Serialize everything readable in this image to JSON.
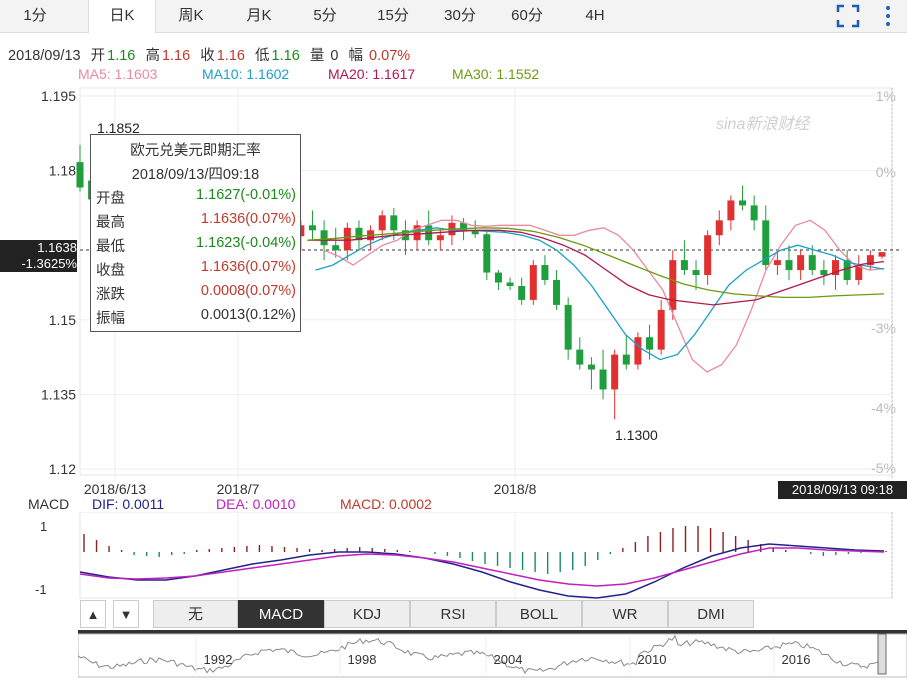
{
  "tabs": [
    {
      "label": "1分",
      "active": false
    },
    {
      "label": "日K",
      "active": true
    },
    {
      "label": "周K",
      "active": false
    },
    {
      "label": "月K",
      "active": false
    },
    {
      "label": "5分",
      "active": false
    },
    {
      "label": "15分",
      "active": false
    },
    {
      "label": "30分",
      "active": false
    },
    {
      "label": "60分",
      "active": false
    },
    {
      "label": "4H",
      "active": false
    }
  ],
  "info": {
    "date": "2018/09/13",
    "open_label": "开",
    "open": "1.16",
    "high_label": "高",
    "high": "1.16",
    "close_label": "收",
    "close": "1.16",
    "low_label": "低",
    "low": "1.16",
    "vol_label": "量",
    "vol": "0",
    "amp_label": "幅",
    "amp": "0.07%"
  },
  "ma": {
    "ma5": "MA5: 1.1603",
    "ma10": "MA10: 1.1602",
    "ma20": "MA20: 1.1617",
    "ma30": "MA30: 1.1552"
  },
  "tooltip": {
    "name": "欧元兑美元即期汇率",
    "datetime": "2018/09/13/四09:18",
    "rows": [
      {
        "label": "开盘",
        "value": "1.1627(-0.01%)",
        "color": "#1a8a1a"
      },
      {
        "label": "最高",
        "value": "1.1636(0.07%)",
        "color": "#c0392b"
      },
      {
        "label": "最低",
        "value": "1.1623(-0.04%)",
        "color": "#1a8a1a"
      },
      {
        "label": "收盘",
        "value": "1.1636(0.07%)",
        "color": "#c0392b"
      },
      {
        "label": "涨跌",
        "value": "0.0008(0.07%)",
        "color": "#c0392b"
      },
      {
        "label": "振幅",
        "value": "0.0013(0.12%)",
        "color": "#333"
      }
    ]
  },
  "current": {
    "price": "1.1638",
    "change": "-1.3625%"
  },
  "max_label": "1.1852",
  "min_label": "1.1300",
  "date_badge": "2018/09/13 09:18",
  "watermark": "sina新浪财经",
  "macd_legend": {
    "title": "MACD",
    "dif": "DIF: 0.0011",
    "dea": "DEA: 0.0010",
    "macd": "MACD: 0.0002"
  },
  "macd_ticks": [
    "1",
    "-1"
  ],
  "indicator_tabs": [
    {
      "label": "无",
      "sel": false
    },
    {
      "label": "MACD",
      "sel": true
    },
    {
      "label": "KDJ",
      "sel": false
    },
    {
      "label": "RSI",
      "sel": false
    },
    {
      "label": "BOLL",
      "sel": false
    },
    {
      "label": "WR",
      "sel": false
    },
    {
      "label": "DMI",
      "sel": false
    }
  ],
  "arrows": {
    "up": "▲",
    "down": "▼"
  },
  "overview_years": [
    "1992",
    "1998",
    "2004",
    "2010",
    "2016"
  ],
  "colors": {
    "up": "#e03030",
    "down": "#1e9e3c",
    "ma5": "#e88aa0",
    "ma10": "#1aa0c8",
    "ma20": "#b01850",
    "ma30": "#6e9a10",
    "dif": "#222288",
    "dea": "#c020c0"
  },
  "chart_data": {
    "type": "candlestick",
    "title": "欧元兑美元即期汇率",
    "y_ticks": [
      "1.195",
      "1.18",
      "1.15",
      "1.135",
      "1.12"
    ],
    "pct_ticks": [
      "1%",
      "0%",
      "-3%",
      "-4%",
      "-5%"
    ],
    "x_ticks": [
      "2018/6/13",
      "2018/7",
      "2018/8"
    ],
    "ylim": [
      1.12,
      1.195
    ],
    "candles": [
      [
        1.1817,
        1.1852,
        1.1758,
        1.1766
      ],
      [
        1.178,
        1.1795,
        1.1727,
        1.1742
      ],
      [
        1.1742,
        1.175,
        1.17,
        1.1712
      ],
      [
        1.1712,
        1.1722,
        1.16,
        1.1615
      ],
      [
        1.1615,
        1.164,
        1.159,
        1.162
      ],
      [
        1.162,
        1.164,
        1.1575,
        1.1626
      ],
      [
        1.1626,
        1.166,
        1.16,
        1.164
      ],
      [
        1.164,
        1.167,
        1.162,
        1.1655
      ],
      [
        1.1655,
        1.169,
        1.164,
        1.1665
      ],
      [
        1.1665,
        1.169,
        1.163,
        1.165
      ],
      [
        1.165,
        1.168,
        1.162,
        1.166
      ],
      [
        1.166,
        1.17,
        1.164,
        1.167
      ],
      [
        1.167,
        1.172,
        1.165,
        1.1705
      ],
      [
        1.1705,
        1.173,
        1.169,
        1.17
      ],
      [
        1.17,
        1.1765,
        1.168,
        1.174
      ],
      [
        1.174,
        1.177,
        1.171,
        1.172
      ],
      [
        1.172,
        1.1745,
        1.166,
        1.168
      ],
      [
        1.168,
        1.171,
        1.164,
        1.17
      ],
      [
        1.17,
        1.172,
        1.166,
        1.1668
      ],
      [
        1.1668,
        1.17,
        1.164,
        1.169
      ],
      [
        1.169,
        1.172,
        1.166,
        1.168
      ],
      [
        1.168,
        1.17,
        1.162,
        1.165
      ],
      [
        1.165,
        1.1685,
        1.1625,
        1.164
      ],
      [
        1.164,
        1.1695,
        1.162,
        1.1685
      ],
      [
        1.1685,
        1.17,
        1.164,
        1.166
      ],
      [
        1.166,
        1.169,
        1.164,
        1.168
      ],
      [
        1.168,
        1.172,
        1.166,
        1.171
      ],
      [
        1.171,
        1.1725,
        1.166,
        1.168
      ],
      [
        1.168,
        1.17,
        1.163,
        1.166
      ],
      [
        1.166,
        1.17,
        1.164,
        1.169
      ],
      [
        1.169,
        1.172,
        1.165,
        1.166
      ],
      [
        1.166,
        1.168,
        1.164,
        1.167
      ],
      [
        1.167,
        1.171,
        1.165,
        1.1695
      ],
      [
        1.1695,
        1.1705,
        1.166,
        1.168
      ],
      [
        1.168,
        1.17,
        1.1665,
        1.1672
      ],
      [
        1.1672,
        1.168,
        1.158,
        1.1595
      ],
      [
        1.1595,
        1.16,
        1.156,
        1.1575
      ],
      [
        1.1575,
        1.1585,
        1.156,
        1.1568
      ],
      [
        1.1568,
        1.1585,
        1.153,
        1.154
      ],
      [
        1.154,
        1.162,
        1.153,
        1.161
      ],
      [
        1.161,
        1.163,
        1.157,
        1.158
      ],
      [
        1.158,
        1.16,
        1.152,
        1.153
      ],
      [
        1.153,
        1.1545,
        1.142,
        1.144
      ],
      [
        1.144,
        1.1465,
        1.14,
        1.141
      ],
      [
        1.141,
        1.1425,
        1.136,
        1.14
      ],
      [
        1.14,
        1.144,
        1.134,
        1.136
      ],
      [
        1.136,
        1.144,
        1.13,
        1.143
      ],
      [
        1.143,
        1.147,
        1.14,
        1.141
      ],
      [
        1.141,
        1.1475,
        1.14,
        1.1465
      ],
      [
        1.1465,
        1.149,
        1.142,
        1.144
      ],
      [
        1.144,
        1.154,
        1.143,
        1.152
      ],
      [
        1.152,
        1.164,
        1.15,
        1.162
      ],
      [
        1.162,
        1.166,
        1.159,
        1.16
      ],
      [
        1.16,
        1.162,
        1.156,
        1.159
      ],
      [
        1.159,
        1.168,
        1.157,
        1.167
      ],
      [
        1.167,
        1.172,
        1.165,
        1.17
      ],
      [
        1.17,
        1.175,
        1.168,
        1.174
      ],
      [
        1.174,
        1.177,
        1.172,
        1.173
      ],
      [
        1.173,
        1.175,
        1.168,
        1.17
      ],
      [
        1.17,
        1.173,
        1.16,
        1.161
      ],
      [
        1.161,
        1.164,
        1.159,
        1.162
      ],
      [
        1.162,
        1.165,
        1.158,
        1.16
      ],
      [
        1.16,
        1.164,
        1.158,
        1.163
      ],
      [
        1.163,
        1.165,
        1.159,
        1.16
      ],
      [
        1.16,
        1.162,
        1.157,
        1.159
      ],
      [
        1.159,
        1.163,
        1.156,
        1.162
      ],
      [
        1.162,
        1.164,
        1.157,
        1.158
      ],
      [
        1.158,
        1.163,
        1.157,
        1.161
      ],
      [
        1.161,
        1.164,
        1.16,
        1.163
      ],
      [
        1.1627,
        1.1636,
        1.1623,
        1.1636
      ]
    ],
    "ma5": [
      1.164,
      1.1628,
      1.161,
      1.163,
      1.165,
      1.166,
      1.168,
      1.169,
      1.17,
      1.17,
      1.169,
      1.1688,
      1.169,
      1.169,
      1.169,
      1.168,
      1.167,
      1.167,
      1.168,
      1.1685,
      1.167,
      1.164,
      1.16,
      1.156,
      1.149,
      1.142,
      1.1395,
      1.141,
      1.145,
      1.152,
      1.16,
      1.165,
      1.169,
      1.17,
      1.168,
      1.164,
      1.161,
      1.16,
      1.1603
    ],
    "ma10": [
      1.16,
      1.161,
      1.163,
      1.165,
      1.1665,
      1.1675,
      1.168,
      1.1685,
      1.168,
      1.168,
      1.1678,
      1.1676,
      1.167,
      1.166,
      1.164,
      1.161,
      1.157,
      1.152,
      1.147,
      1.144,
      1.142,
      1.143,
      1.147,
      1.152,
      1.157,
      1.16,
      1.162,
      1.164,
      1.165,
      1.164,
      1.163,
      1.1615,
      1.1608,
      1.1602
    ],
    "ma20": [
      1.166,
      1.166,
      1.166,
      1.1665,
      1.167,
      1.1672,
      1.1675,
      1.1678,
      1.168,
      1.168,
      1.1676,
      1.1665,
      1.165,
      1.163,
      1.16,
      1.157,
      1.155,
      1.154,
      1.1535,
      1.153,
      1.1535,
      1.154,
      1.1555,
      1.157,
      1.1585,
      1.16,
      1.1612,
      1.1617
    ],
    "ma30": [
      1.166,
      1.1663,
      1.1668,
      1.1672,
      1.1676,
      1.168,
      1.1683,
      1.1685,
      1.1684,
      1.1678,
      1.1666,
      1.165,
      1.163,
      1.161,
      1.159,
      1.1572,
      1.156,
      1.1552,
      1.1548,
      1.1545,
      1.1545,
      1.1548,
      1.155,
      1.1552
    ]
  }
}
